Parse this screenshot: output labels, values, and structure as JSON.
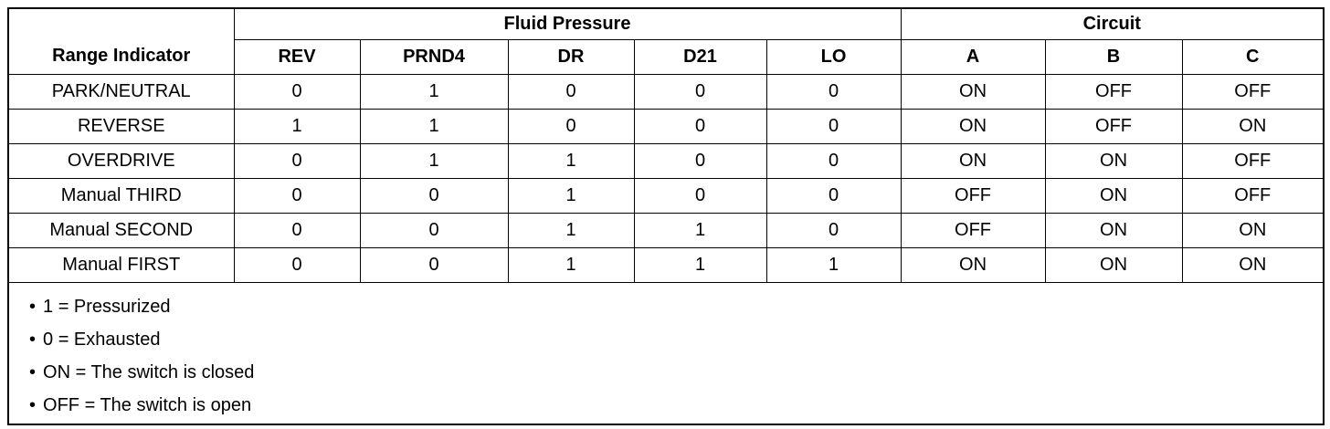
{
  "table": {
    "header": {
      "range_indicator": "Range Indicator",
      "fluid_pressure": "Fluid Pressure",
      "circuit": "Circuit",
      "columns": [
        "REV",
        "PRND4",
        "DR",
        "D21",
        "LO",
        "A",
        "B",
        "C"
      ]
    },
    "rows": [
      [
        "PARK/NEUTRAL",
        "0",
        "1",
        "0",
        "0",
        "0",
        "ON",
        "OFF",
        "OFF"
      ],
      [
        "REVERSE",
        "1",
        "1",
        "0",
        "0",
        "0",
        "ON",
        "OFF",
        "ON"
      ],
      [
        "OVERDRIVE",
        "0",
        "1",
        "1",
        "0",
        "0",
        "ON",
        "ON",
        "OFF"
      ],
      [
        "Manual THIRD",
        "0",
        "0",
        "1",
        "0",
        "0",
        "OFF",
        "ON",
        "OFF"
      ],
      [
        "Manual SECOND",
        "0",
        "0",
        "1",
        "1",
        "0",
        "OFF",
        "ON",
        "ON"
      ],
      [
        "Manual FIRST",
        "0",
        "0",
        "1",
        "1",
        "1",
        "ON",
        "ON",
        "ON"
      ]
    ],
    "notes": [
      "1 = Pressurized",
      "0 = Exhausted",
      "ON = The switch is closed",
      "OFF = The switch is open"
    ]
  }
}
